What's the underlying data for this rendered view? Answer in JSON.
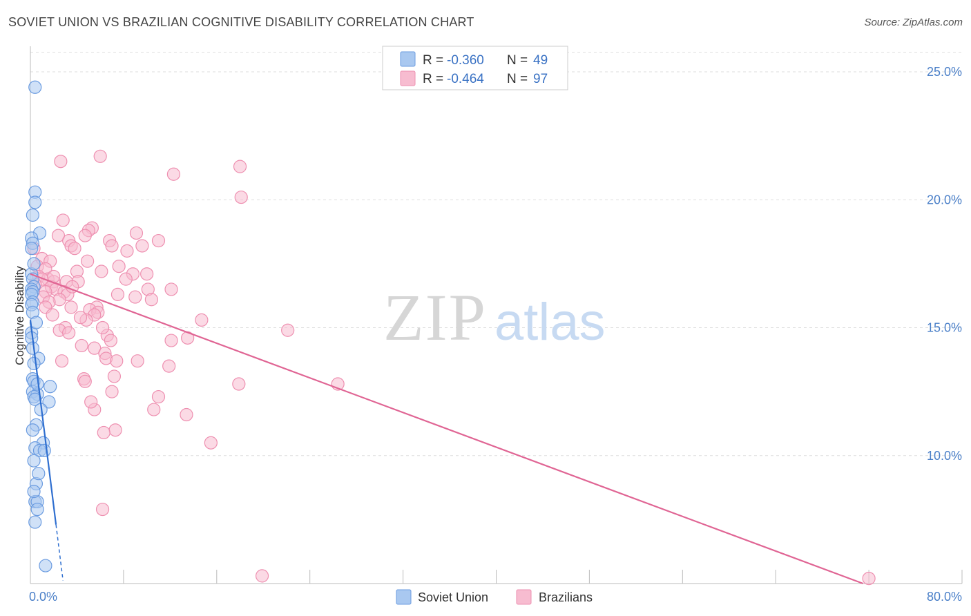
{
  "title": "SOVIET UNION VS BRAZILIAN COGNITIVE DISABILITY CORRELATION CHART",
  "source": "Source: ZipAtlas.com",
  "watermark": {
    "zip": "ZIP",
    "atlas": "atlas"
  },
  "colors": {
    "soviet_fill": "#a9c8f0",
    "soviet_stroke": "#6a9be0",
    "soviet_line": "#2f6fd0",
    "brazil_fill": "#f7bcd0",
    "brazil_stroke": "#ee8fb0",
    "brazil_line": "#e06594",
    "grid": "#dddddd",
    "tick_text": "#4a7fc8"
  },
  "legend": {
    "rows": [
      {
        "r_label": "R = ",
        "r_value": "-0.360",
        "n_label": "N = ",
        "n_value": "49"
      },
      {
        "r_label": "R = ",
        "r_value": "-0.464",
        "n_label": "N = ",
        "n_value": "97"
      }
    ]
  },
  "chart_data": {
    "type": "scatter",
    "title": "SOVIET UNION VS BRAZILIAN COGNITIVE DISABILITY CORRELATION CHART",
    "xlabel": "",
    "ylabel": "Cognitive Disability",
    "xlim": [
      0,
      80
    ],
    "ylim": [
      5,
      26
    ],
    "x_tick_labels": [
      "0.0%",
      "80.0%"
    ],
    "y_ticks": [
      10,
      15,
      20,
      25
    ],
    "y_tick_labels": [
      "10.0%",
      "15.0%",
      "20.0%",
      "25.0%"
    ],
    "grid": true,
    "legend_position": "top-center",
    "series": [
      {
        "name": "Soviet Union",
        "points": [
          [
            0.4,
            24.4
          ],
          [
            0.4,
            20.3
          ],
          [
            0.4,
            19.9
          ],
          [
            0.2,
            19.4
          ],
          [
            0.8,
            18.7
          ],
          [
            0.1,
            18.5
          ],
          [
            0.2,
            18.3
          ],
          [
            0.1,
            18.1
          ],
          [
            0.1,
            17.1
          ],
          [
            0.2,
            16.9
          ],
          [
            0.3,
            16.6
          ],
          [
            0.1,
            16.5
          ],
          [
            0.2,
            16.4
          ],
          [
            0.1,
            16.3
          ],
          [
            0.2,
            16.0
          ],
          [
            0.1,
            15.9
          ],
          [
            0.2,
            15.6
          ],
          [
            0.1,
            14.8
          ],
          [
            0.1,
            14.6
          ],
          [
            0.7,
            13.8
          ],
          [
            0.3,
            13.6
          ],
          [
            0.2,
            13.0
          ],
          [
            0.3,
            12.9
          ],
          [
            1.7,
            12.7
          ],
          [
            0.2,
            12.5
          ],
          [
            0.6,
            12.4
          ],
          [
            0.3,
            12.3
          ],
          [
            0.4,
            12.2
          ],
          [
            1.6,
            12.1
          ],
          [
            0.5,
            11.2
          ],
          [
            1.1,
            10.5
          ],
          [
            0.4,
            10.3
          ],
          [
            0.8,
            10.2
          ],
          [
            1.2,
            10.2
          ],
          [
            0.3,
            9.8
          ],
          [
            0.5,
            8.9
          ],
          [
            0.4,
            8.2
          ],
          [
            0.6,
            8.2
          ],
          [
            0.6,
            7.9
          ],
          [
            0.4,
            7.4
          ],
          [
            1.3,
            5.7
          ],
          [
            0.3,
            17.5
          ],
          [
            0.5,
            15.2
          ],
          [
            0.2,
            14.2
          ],
          [
            0.6,
            12.8
          ],
          [
            0.9,
            11.8
          ],
          [
            0.2,
            11.0
          ],
          [
            0.7,
            9.3
          ],
          [
            0.3,
            8.6
          ]
        ]
      },
      {
        "name": "Brazilians",
        "points": [
          [
            0.3,
            18.1
          ],
          [
            2.6,
            21.5
          ],
          [
            6.0,
            21.7
          ],
          [
            12.3,
            21.0
          ],
          [
            18.0,
            21.3
          ],
          [
            18.1,
            20.1
          ],
          [
            2.8,
            19.2
          ],
          [
            5.3,
            18.9
          ],
          [
            2.4,
            18.6
          ],
          [
            9.1,
            18.7
          ],
          [
            11.0,
            18.4
          ],
          [
            3.3,
            18.4
          ],
          [
            5.0,
            18.8
          ],
          [
            4.7,
            18.6
          ],
          [
            6.8,
            18.4
          ],
          [
            7.0,
            18.2
          ],
          [
            9.6,
            18.2
          ],
          [
            3.5,
            18.2
          ],
          [
            3.8,
            18.1
          ],
          [
            8.3,
            18.0
          ],
          [
            1.0,
            17.7
          ],
          [
            4.9,
            17.6
          ],
          [
            1.7,
            17.6
          ],
          [
            0.6,
            17.4
          ],
          [
            1.3,
            17.3
          ],
          [
            4.0,
            17.2
          ],
          [
            7.6,
            17.4
          ],
          [
            6.1,
            17.2
          ],
          [
            8.8,
            17.1
          ],
          [
            10.0,
            17.1
          ],
          [
            0.7,
            17.0
          ],
          [
            1.5,
            16.9
          ],
          [
            1.0,
            16.9
          ],
          [
            2.0,
            16.8
          ],
          [
            3.1,
            16.8
          ],
          [
            4.1,
            16.8
          ],
          [
            0.4,
            16.7
          ],
          [
            1.8,
            16.6
          ],
          [
            2.2,
            16.5
          ],
          [
            10.1,
            16.5
          ],
          [
            12.1,
            16.5
          ],
          [
            1.3,
            16.4
          ],
          [
            2.9,
            16.4
          ],
          [
            3.2,
            16.3
          ],
          [
            7.5,
            16.3
          ],
          [
            1.1,
            16.2
          ],
          [
            2.5,
            16.1
          ],
          [
            10.4,
            16.1
          ],
          [
            1.6,
            16.0
          ],
          [
            1.3,
            15.8
          ],
          [
            3.5,
            15.8
          ],
          [
            5.7,
            15.8
          ],
          [
            5.1,
            15.7
          ],
          [
            5.8,
            15.6
          ],
          [
            5.5,
            15.5
          ],
          [
            4.8,
            15.3
          ],
          [
            14.7,
            15.3
          ],
          [
            3.0,
            15.0
          ],
          [
            2.5,
            14.9
          ],
          [
            22.1,
            14.9
          ],
          [
            3.3,
            14.8
          ],
          [
            6.6,
            14.7
          ],
          [
            13.5,
            14.6
          ],
          [
            12.1,
            14.5
          ],
          [
            4.4,
            14.3
          ],
          [
            5.5,
            14.2
          ],
          [
            6.4,
            14.0
          ],
          [
            6.5,
            13.8
          ],
          [
            2.7,
            13.7
          ],
          [
            7.4,
            13.7
          ],
          [
            9.2,
            13.7
          ],
          [
            11.9,
            13.5
          ],
          [
            7.2,
            13.1
          ],
          [
            4.6,
            13.0
          ],
          [
            4.7,
            12.9
          ],
          [
            17.9,
            12.8
          ],
          [
            26.4,
            12.8
          ],
          [
            7.0,
            12.5
          ],
          [
            5.5,
            11.8
          ],
          [
            10.6,
            11.8
          ],
          [
            13.4,
            11.6
          ],
          [
            7.3,
            11.0
          ],
          [
            6.3,
            10.9
          ],
          [
            15.5,
            10.5
          ],
          [
            6.2,
            7.9
          ],
          [
            19.9,
            5.3
          ],
          [
            72.0,
            5.2
          ],
          [
            2.0,
            17.0
          ],
          [
            3.6,
            16.6
          ],
          [
            6.2,
            15.0
          ],
          [
            8.2,
            16.9
          ],
          [
            9.0,
            16.2
          ],
          [
            1.9,
            15.5
          ],
          [
            4.3,
            15.4
          ],
          [
            6.9,
            14.5
          ],
          [
            5.2,
            12.1
          ],
          [
            11.0,
            12.3
          ]
        ]
      }
    ],
    "trend_lines": [
      {
        "series": "Soviet Union",
        "x_start": 0,
        "y_start": 15.3,
        "x_end": 2.2,
        "y_end": 7.3,
        "dashed_to_x": 2.8
      },
      {
        "series": "Brazilians",
        "x_start": 0,
        "y_start": 17.1,
        "x_end": 71.5,
        "y_end": 5.0
      }
    ]
  }
}
